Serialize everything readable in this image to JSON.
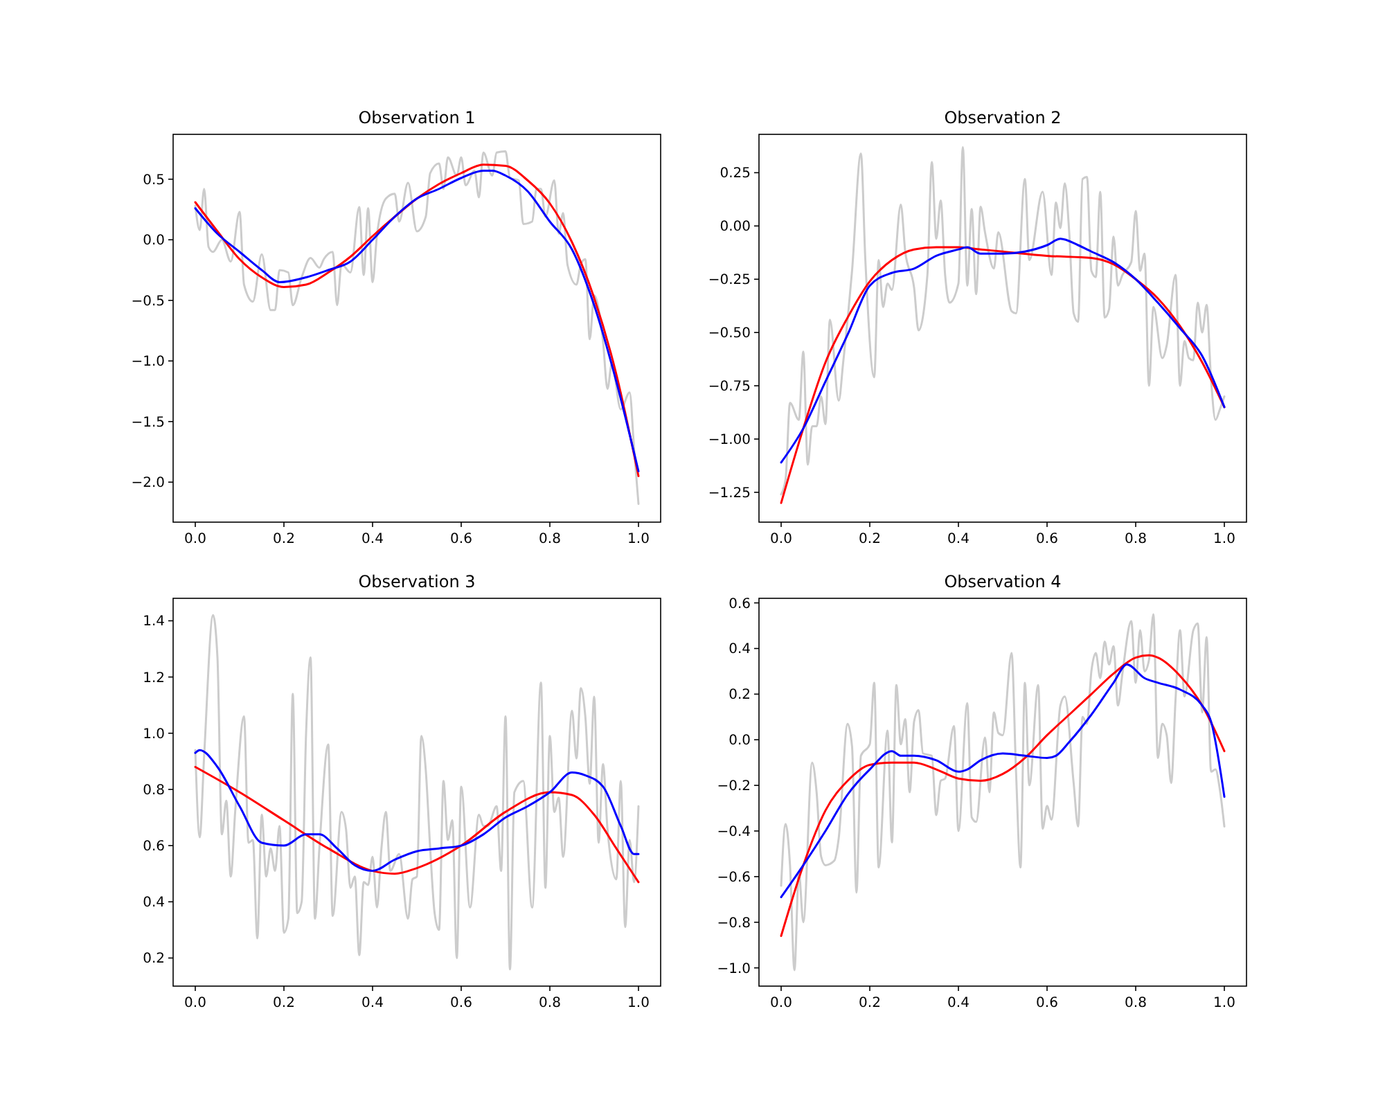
{
  "chart_data": [
    {
      "type": "line",
      "title": "Observation 1",
      "xlim": [
        -0.05,
        1.05
      ],
      "ylim": [
        -2.33,
        0.87
      ],
      "xticks": [
        {
          "value": 0,
          "label": "0.0"
        },
        {
          "value": 0.2,
          "label": "0.2"
        },
        {
          "value": 0.4,
          "label": "0.4"
        },
        {
          "value": 0.6,
          "label": "0.6"
        },
        {
          "value": 0.8,
          "label": "0.8"
        },
        {
          "value": 1,
          "label": "1.0"
        }
      ],
      "yticks": [
        {
          "value": -2,
          "label": "−2.0"
        },
        {
          "value": -1.5,
          "label": "−1.5"
        },
        {
          "value": -1,
          "label": "−1.0"
        },
        {
          "value": -0.5,
          "label": "−0.5"
        },
        {
          "value": 0,
          "label": "0.0"
        },
        {
          "value": 0.5,
          "label": "0.5"
        }
      ],
      "series": [
        {
          "type": "line",
          "color": "#cccccc",
          "x": [
            0,
            0.01,
            0.02,
            0.03,
            0.04,
            0.06,
            0.08,
            0.1,
            0.11,
            0.13,
            0.15,
            0.17,
            0.18,
            0.19,
            0.21,
            0.22,
            0.24,
            0.26,
            0.28,
            0.29,
            0.31,
            0.32,
            0.33,
            0.35,
            0.37,
            0.38,
            0.39,
            0.4,
            0.41,
            0.43,
            0.45,
            0.46,
            0.48,
            0.5,
            0.52,
            0.53,
            0.55,
            0.56,
            0.57,
            0.59,
            0.6,
            0.61,
            0.63,
            0.64,
            0.65,
            0.67,
            0.68,
            0.7,
            0.71,
            0.73,
            0.74,
            0.76,
            0.77,
            0.78,
            0.79,
            0.81,
            0.82,
            0.83,
            0.84,
            0.86,
            0.87,
            0.88,
            0.89,
            0.9,
            0.92,
            0.93,
            0.94,
            0.96,
            0.98,
            0.99,
            1.0
          ],
          "values": [
            0.28,
            0.08,
            0.42,
            -0.06,
            -0.1,
            0.0,
            -0.18,
            0.23,
            -0.37,
            -0.51,
            -0.12,
            -0.58,
            -0.58,
            -0.25,
            -0.27,
            -0.54,
            -0.31,
            -0.15,
            -0.23,
            -0.16,
            -0.1,
            -0.54,
            -0.2,
            -0.27,
            0.27,
            -0.29,
            0.26,
            -0.35,
            0.04,
            0.34,
            0.38,
            0.15,
            0.47,
            0.07,
            0.19,
            0.55,
            0.63,
            0.42,
            0.68,
            0.53,
            0.68,
            0.45,
            0.57,
            0.35,
            0.72,
            0.53,
            0.72,
            0.73,
            0.51,
            0.49,
            0.13,
            0.15,
            0.42,
            0.42,
            0.19,
            0.49,
            0.05,
            0.22,
            -0.21,
            -0.37,
            -0.2,
            -0.16,
            -0.82,
            -0.46,
            -0.84,
            -1.23,
            -1.02,
            -1.4,
            -1.26,
            -1.72,
            -2.18
          ]
        },
        {
          "type": "line",
          "color": "#ff0000",
          "x": [
            0,
            0.05,
            0.1,
            0.15,
            0.2,
            0.25,
            0.3,
            0.35,
            0.4,
            0.45,
            0.5,
            0.55,
            0.6,
            0.65,
            0.7,
            0.75,
            0.8,
            0.85,
            0.9,
            0.95,
            1.0
          ],
          "values": [
            0.31,
            0.07,
            -0.16,
            -0.31,
            -0.39,
            -0.37,
            -0.27,
            -0.14,
            0.03,
            0.19,
            0.34,
            0.46,
            0.55,
            0.62,
            0.61,
            0.49,
            0.3,
            -0.02,
            -0.48,
            -1.11,
            -1.95
          ]
        },
        {
          "type": "line",
          "color": "#0000ff",
          "x": [
            0,
            0.05,
            0.1,
            0.15,
            0.19,
            0.25,
            0.3,
            0.35,
            0.4,
            0.45,
            0.5,
            0.55,
            0.6,
            0.65,
            0.67,
            0.7,
            0.75,
            0.8,
            0.85,
            0.9,
            0.95,
            1.0
          ],
          "values": [
            0.26,
            0.05,
            -0.1,
            -0.25,
            -0.35,
            -0.31,
            -0.25,
            -0.18,
            0.0,
            0.19,
            0.34,
            0.42,
            0.51,
            0.57,
            0.57,
            0.53,
            0.4,
            0.15,
            -0.08,
            -0.54,
            -1.17,
            -1.91
          ]
        }
      ]
    },
    {
      "type": "line",
      "title": "Observation 2",
      "xlim": [
        -0.05,
        1.05
      ],
      "ylim": [
        -1.39,
        0.43
      ],
      "xticks": [
        {
          "value": 0,
          "label": "0.0"
        },
        {
          "value": 0.2,
          "label": "0.2"
        },
        {
          "value": 0.4,
          "label": "0.4"
        },
        {
          "value": 0.6,
          "label": "0.6"
        },
        {
          "value": 0.8,
          "label": "0.8"
        },
        {
          "value": 1,
          "label": "1.0"
        }
      ],
      "yticks": [
        {
          "value": -1.25,
          "label": "−1.25"
        },
        {
          "value": -1,
          "label": "−1.00"
        },
        {
          "value": -0.75,
          "label": "−0.75"
        },
        {
          "value": -0.5,
          "label": "−0.50"
        },
        {
          "value": -0.25,
          "label": "−0.25"
        },
        {
          "value": 0,
          "label": "0.00"
        },
        {
          "value": 0.25,
          "label": "0.25"
        }
      ],
      "series": [
        {
          "type": "line",
          "color": "#cccccc",
          "x": [
            0,
            0.01,
            0.02,
            0.04,
            0.05,
            0.06,
            0.07,
            0.08,
            0.09,
            0.1,
            0.11,
            0.13,
            0.14,
            0.16,
            0.18,
            0.19,
            0.21,
            0.22,
            0.23,
            0.24,
            0.25,
            0.27,
            0.28,
            0.3,
            0.31,
            0.33,
            0.34,
            0.35,
            0.36,
            0.37,
            0.38,
            0.4,
            0.41,
            0.42,
            0.43,
            0.44,
            0.45,
            0.46,
            0.48,
            0.49,
            0.52,
            0.53,
            0.55,
            0.56,
            0.59,
            0.61,
            0.62,
            0.63,
            0.64,
            0.65,
            0.66,
            0.67,
            0.68,
            0.69,
            0.7,
            0.71,
            0.72,
            0.73,
            0.74,
            0.75,
            0.76,
            0.77,
            0.79,
            0.8,
            0.81,
            0.82,
            0.83,
            0.84,
            0.86,
            0.87,
            0.89,
            0.9,
            0.91,
            0.92,
            0.93,
            0.94,
            0.95,
            0.96,
            0.97,
            0.98,
            0.99,
            1.0
          ],
          "values": [
            -1.26,
            -1.19,
            -0.83,
            -0.91,
            -0.59,
            -1.12,
            -0.94,
            -0.94,
            -0.8,
            -0.93,
            -0.44,
            -0.82,
            -0.64,
            -0.21,
            0.34,
            -0.16,
            -0.71,
            -0.16,
            -0.38,
            -0.27,
            -0.3,
            0.1,
            -0.12,
            -0.29,
            -0.49,
            -0.23,
            0.3,
            -0.06,
            0.12,
            -0.23,
            -0.36,
            -0.27,
            0.37,
            -0.28,
            0.08,
            -0.32,
            0.09,
            -0.03,
            -0.2,
            -0.03,
            -0.4,
            -0.41,
            0.22,
            -0.16,
            0.16,
            -0.23,
            0.11,
            -0.01,
            0.2,
            -0.03,
            -0.41,
            -0.45,
            0.22,
            0.23,
            -0.21,
            -0.24,
            0.16,
            -0.43,
            -0.39,
            -0.05,
            -0.28,
            -0.23,
            -0.17,
            0.07,
            -0.21,
            -0.13,
            -0.75,
            -0.38,
            -0.62,
            -0.56,
            -0.23,
            -0.75,
            -0.54,
            -0.62,
            -0.63,
            -0.36,
            -0.5,
            -0.37,
            -0.72,
            -0.91,
            -0.86,
            -0.8
          ]
        },
        {
          "type": "line",
          "color": "#ff0000",
          "x": [
            0,
            0.05,
            0.1,
            0.15,
            0.2,
            0.25,
            0.3,
            0.35,
            0.4,
            0.45,
            0.5,
            0.6,
            0.7,
            0.75,
            0.8,
            0.85,
            0.9,
            0.95,
            1.0
          ],
          "values": [
            -1.3,
            -0.95,
            -0.64,
            -0.43,
            -0.26,
            -0.16,
            -0.11,
            -0.1,
            -0.1,
            -0.11,
            -0.12,
            -0.14,
            -0.15,
            -0.18,
            -0.25,
            -0.34,
            -0.47,
            -0.64,
            -0.85
          ]
        },
        {
          "type": "line",
          "color": "#0000ff",
          "x": [
            0,
            0.05,
            0.1,
            0.15,
            0.2,
            0.25,
            0.3,
            0.35,
            0.4,
            0.42,
            0.45,
            0.5,
            0.55,
            0.6,
            0.63,
            0.67,
            0.7,
            0.75,
            0.8,
            0.85,
            0.9,
            0.95,
            1.0
          ],
          "values": [
            -1.11,
            -0.95,
            -0.73,
            -0.51,
            -0.28,
            -0.22,
            -0.2,
            -0.14,
            -0.11,
            -0.1,
            -0.13,
            -0.13,
            -0.12,
            -0.09,
            -0.06,
            -0.09,
            -0.12,
            -0.17,
            -0.25,
            -0.36,
            -0.48,
            -0.61,
            -0.85
          ]
        }
      ]
    },
    {
      "type": "line",
      "title": "Observation 3",
      "xlim": [
        -0.05,
        1.05
      ],
      "ylim": [
        0.1,
        1.48
      ],
      "xticks": [
        {
          "value": 0,
          "label": "0.0"
        },
        {
          "value": 0.2,
          "label": "0.2"
        },
        {
          "value": 0.4,
          "label": "0.4"
        },
        {
          "value": 0.6,
          "label": "0.6"
        },
        {
          "value": 0.8,
          "label": "0.8"
        },
        {
          "value": 1,
          "label": "1.0"
        }
      ],
      "yticks": [
        0.2,
        0.4,
        0.6,
        0.8,
        {
          "value": 1,
          "label": "1.0"
        },
        1.2,
        1.4
      ],
      "series": [
        {
          "type": "line",
          "color": "#cccccc",
          "x": [
            0,
            0.01,
            0.02,
            0.04,
            0.05,
            0.06,
            0.07,
            0.08,
            0.09,
            0.11,
            0.12,
            0.13,
            0.14,
            0.15,
            0.16,
            0.17,
            0.18,
            0.19,
            0.2,
            0.21,
            0.22,
            0.23,
            0.24,
            0.25,
            0.26,
            0.27,
            0.28,
            0.3,
            0.31,
            0.33,
            0.34,
            0.35,
            0.36,
            0.37,
            0.38,
            0.39,
            0.4,
            0.41,
            0.42,
            0.43,
            0.44,
            0.46,
            0.48,
            0.49,
            0.5,
            0.51,
            0.52,
            0.53,
            0.54,
            0.55,
            0.56,
            0.57,
            0.58,
            0.59,
            0.6,
            0.62,
            0.64,
            0.65,
            0.66,
            0.68,
            0.69,
            0.7,
            0.71,
            0.72,
            0.74,
            0.76,
            0.78,
            0.79,
            0.8,
            0.81,
            0.82,
            0.83,
            0.85,
            0.86,
            0.87,
            0.88,
            0.89,
            0.9,
            0.91,
            0.92,
            0.93,
            0.95,
            0.96,
            0.97,
            0.98,
            0.99,
            1.0
          ],
          "values": [
            0.94,
            0.63,
            0.92,
            1.42,
            1.27,
            0.64,
            0.76,
            0.49,
            0.72,
            1.06,
            0.61,
            0.62,
            0.27,
            0.71,
            0.49,
            0.59,
            0.51,
            0.67,
            0.29,
            0.34,
            1.14,
            0.36,
            0.4,
            1.0,
            1.27,
            0.34,
            0.59,
            0.96,
            0.35,
            0.72,
            0.66,
            0.45,
            0.49,
            0.21,
            0.47,
            0.46,
            0.56,
            0.38,
            0.59,
            0.72,
            0.51,
            0.57,
            0.34,
            0.48,
            0.49,
            0.99,
            0.87,
            0.59,
            0.36,
            0.3,
            0.83,
            0.62,
            0.69,
            0.2,
            0.81,
            0.38,
            0.71,
            0.67,
            0.67,
            0.74,
            0.51,
            1.06,
            0.16,
            0.79,
            0.83,
            0.38,
            1.18,
            0.45,
            0.99,
            0.72,
            0.77,
            0.56,
            1.08,
            0.91,
            1.16,
            1.06,
            0.82,
            1.13,
            0.61,
            0.89,
            0.66,
            0.48,
            0.83,
            0.31,
            0.62,
            0.47,
            0.74
          ]
        },
        {
          "type": "line",
          "color": "#ff0000",
          "x": [
            0,
            0.1,
            0.2,
            0.3,
            0.4,
            0.45,
            0.5,
            0.6,
            0.7,
            0.8,
            0.85,
            0.9,
            0.95,
            1.0
          ],
          "values": [
            0.88,
            0.79,
            0.69,
            0.59,
            0.51,
            0.5,
            0.52,
            0.6,
            0.72,
            0.79,
            0.78,
            0.71,
            0.59,
            0.47
          ]
        },
        {
          "type": "line",
          "color": "#0000ff",
          "x": [
            0,
            0.01,
            0.05,
            0.1,
            0.15,
            0.2,
            0.25,
            0.28,
            0.32,
            0.36,
            0.4,
            0.45,
            0.5,
            0.55,
            0.6,
            0.65,
            0.7,
            0.75,
            0.8,
            0.85,
            0.88,
            0.92,
            0.96,
            0.99,
            1.0
          ],
          "values": [
            0.93,
            0.94,
            0.88,
            0.74,
            0.61,
            0.6,
            0.64,
            0.64,
            0.59,
            0.53,
            0.51,
            0.55,
            0.58,
            0.59,
            0.6,
            0.64,
            0.7,
            0.74,
            0.79,
            0.86,
            0.85,
            0.81,
            0.67,
            0.57,
            0.57
          ]
        }
      ]
    },
    {
      "type": "line",
      "title": "Observation 4",
      "xlim": [
        -0.05,
        1.05
      ],
      "ylim": [
        -1.08,
        0.62
      ],
      "xticks": [
        {
          "value": 0,
          "label": "0.0"
        },
        {
          "value": 0.2,
          "label": "0.2"
        },
        {
          "value": 0.4,
          "label": "0.4"
        },
        {
          "value": 0.6,
          "label": "0.6"
        },
        {
          "value": 0.8,
          "label": "0.8"
        },
        {
          "value": 1,
          "label": "1.0"
        }
      ],
      "yticks": [
        {
          "value": -1,
          "label": "−1.0"
        },
        {
          "value": -0.8,
          "label": "−0.8"
        },
        {
          "value": -0.6,
          "label": "−0.6"
        },
        {
          "value": -0.4,
          "label": "−0.4"
        },
        {
          "value": -0.2,
          "label": "−0.2"
        },
        {
          "value": 0,
          "label": "0.0"
        },
        0.2,
        0.4,
        0.6
      ],
      "series": [
        {
          "type": "line",
          "color": "#cccccc",
          "x": [
            0,
            0.01,
            0.02,
            0.03,
            0.04,
            0.05,
            0.07,
            0.08,
            0.09,
            0.1,
            0.12,
            0.13,
            0.15,
            0.16,
            0.17,
            0.18,
            0.2,
            0.21,
            0.22,
            0.24,
            0.25,
            0.26,
            0.27,
            0.28,
            0.29,
            0.3,
            0.31,
            0.32,
            0.34,
            0.35,
            0.36,
            0.37,
            0.39,
            0.4,
            0.42,
            0.43,
            0.44,
            0.46,
            0.47,
            0.48,
            0.49,
            0.5,
            0.52,
            0.53,
            0.54,
            0.55,
            0.56,
            0.58,
            0.59,
            0.6,
            0.61,
            0.63,
            0.64,
            0.66,
            0.67,
            0.68,
            0.69,
            0.7,
            0.71,
            0.72,
            0.73,
            0.74,
            0.75,
            0.76,
            0.77,
            0.79,
            0.8,
            0.81,
            0.82,
            0.83,
            0.84,
            0.85,
            0.86,
            0.87,
            0.88,
            0.89,
            0.9,
            0.91,
            0.93,
            0.94,
            0.95,
            0.96,
            0.97,
            0.98,
            0.99,
            1.0
          ],
          "values": [
            -0.64,
            -0.37,
            -0.55,
            -1.01,
            -0.58,
            -0.8,
            -0.1,
            -0.23,
            -0.51,
            -0.55,
            -0.53,
            -0.43,
            0.07,
            -0.03,
            -0.67,
            -0.07,
            -0.02,
            0.25,
            -0.56,
            0.04,
            -0.45,
            0.24,
            -0.02,
            0.09,
            -0.23,
            0.08,
            0.13,
            -0.06,
            -0.07,
            -0.33,
            -0.18,
            -0.17,
            0.06,
            -0.4,
            0.16,
            -0.34,
            -0.36,
            0.01,
            -0.23,
            0.12,
            0.03,
            0.02,
            0.38,
            -0.14,
            -0.56,
            0.25,
            -0.2,
            0.24,
            -0.39,
            -0.29,
            -0.35,
            0.15,
            0.19,
            -0.19,
            -0.38,
            0.1,
            0.07,
            0.3,
            0.38,
            0.27,
            0.43,
            0.33,
            0.41,
            0.15,
            0.29,
            0.52,
            0.25,
            0.48,
            0.3,
            0.35,
            0.55,
            -0.08,
            0.07,
            0.02,
            -0.19,
            0.18,
            0.48,
            0.19,
            0.48,
            0.51,
            0.12,
            0.45,
            -0.14,
            -0.13,
            -0.22,
            -0.38
          ]
        },
        {
          "type": "line",
          "color": "#ff0000",
          "x": [
            0,
            0.05,
            0.1,
            0.15,
            0.2,
            0.25,
            0.3,
            0.35,
            0.4,
            0.45,
            0.5,
            0.55,
            0.6,
            0.65,
            0.7,
            0.75,
            0.8,
            0.83,
            0.85,
            0.9,
            0.95,
            1.0
          ],
          "values": [
            -0.86,
            -0.55,
            -0.31,
            -0.18,
            -0.11,
            -0.1,
            -0.1,
            -0.13,
            -0.17,
            -0.18,
            -0.15,
            -0.08,
            0.02,
            0.11,
            0.2,
            0.29,
            0.36,
            0.37,
            0.36,
            0.28,
            0.15,
            -0.05
          ]
        },
        {
          "type": "line",
          "color": "#0000ff",
          "x": [
            0,
            0.05,
            0.1,
            0.15,
            0.2,
            0.25,
            0.27,
            0.3,
            0.35,
            0.4,
            0.42,
            0.45,
            0.5,
            0.55,
            0.6,
            0.62,
            0.65,
            0.7,
            0.75,
            0.78,
            0.82,
            0.85,
            0.9,
            0.95,
            0.97,
            1.0
          ],
          "values": [
            -0.69,
            -0.55,
            -0.4,
            -0.24,
            -0.13,
            -0.05,
            -0.07,
            -0.07,
            -0.09,
            -0.14,
            -0.13,
            -0.09,
            -0.06,
            -0.07,
            -0.08,
            -0.07,
            -0.01,
            0.11,
            0.25,
            0.33,
            0.27,
            0.25,
            0.22,
            0.15,
            0.08,
            -0.25
          ]
        }
      ]
    }
  ]
}
